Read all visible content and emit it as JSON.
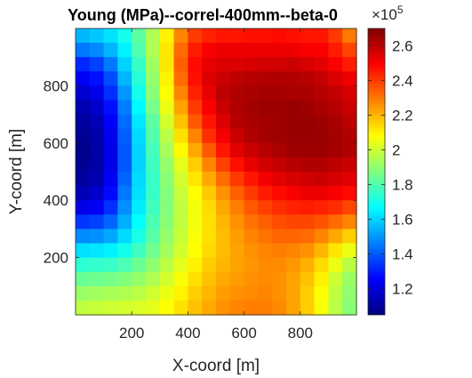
{
  "chart_data": {
    "type": "heatmap",
    "title": "Young (MPa)--correl-400mm--beta-0",
    "xlabel": "X-coord [m]",
    "ylabel": "Y-coord [m]",
    "xlim": [
      0,
      1000
    ],
    "ylim": [
      0,
      1000
    ],
    "xticks": [
      200,
      400,
      600,
      800
    ],
    "yticks": [
      200,
      400,
      600,
      800
    ],
    "colormap": "jet",
    "colorbar": {
      "clim": [
        1.05,
        2.7
      ],
      "ticks": [
        1.2,
        1.4,
        1.6,
        1.8,
        2,
        2.2,
        2.4,
        2.6
      ],
      "multiplier": "×10^5",
      "multiplier_base": "×10",
      "multiplier_exp": "5"
    },
    "grid": {
      "cols": 20,
      "rows": 20,
      "cell_size_m": 50,
      "row_order": "top-to-bottom",
      "values_x1e5": [
        [
          1.55,
          1.58,
          1.62,
          1.7,
          1.82,
          1.95,
          2.1,
          2.28,
          2.4,
          2.44,
          2.46,
          2.46,
          2.47,
          2.47,
          2.48,
          2.47,
          2.46,
          2.46,
          2.4,
          2.3
        ],
        [
          1.45,
          1.48,
          1.55,
          1.65,
          1.8,
          1.95,
          2.12,
          2.32,
          2.45,
          2.5,
          2.52,
          2.52,
          2.52,
          2.52,
          2.52,
          2.52,
          2.5,
          2.5,
          2.45,
          2.38
        ],
        [
          1.32,
          1.36,
          1.45,
          1.6,
          1.76,
          1.93,
          2.12,
          2.34,
          2.48,
          2.53,
          2.55,
          2.55,
          2.56,
          2.57,
          2.57,
          2.58,
          2.56,
          2.54,
          2.5,
          2.45
        ],
        [
          1.24,
          1.28,
          1.38,
          1.55,
          1.73,
          1.91,
          2.1,
          2.32,
          2.47,
          2.55,
          2.58,
          2.6,
          2.61,
          2.62,
          2.62,
          2.62,
          2.61,
          2.59,
          2.55,
          2.52
        ],
        [
          1.18,
          1.22,
          1.33,
          1.5,
          1.7,
          1.89,
          2.08,
          2.28,
          2.44,
          2.53,
          2.6,
          2.62,
          2.63,
          2.64,
          2.64,
          2.63,
          2.63,
          2.61,
          2.59,
          2.56
        ],
        [
          1.13,
          1.17,
          1.28,
          1.46,
          1.66,
          1.86,
          2.05,
          2.23,
          2.4,
          2.5,
          2.58,
          2.62,
          2.64,
          2.65,
          2.65,
          2.66,
          2.65,
          2.63,
          2.61,
          2.58
        ],
        [
          1.1,
          1.14,
          1.25,
          1.43,
          1.63,
          1.82,
          2.01,
          2.18,
          2.35,
          2.46,
          2.55,
          2.61,
          2.63,
          2.64,
          2.65,
          2.66,
          2.66,
          2.65,
          2.63,
          2.6
        ],
        [
          1.08,
          1.12,
          1.23,
          1.41,
          1.61,
          1.8,
          1.97,
          2.13,
          2.28,
          2.42,
          2.51,
          2.58,
          2.62,
          2.64,
          2.65,
          2.66,
          2.66,
          2.66,
          2.64,
          2.62
        ],
        [
          1.07,
          1.11,
          1.22,
          1.4,
          1.6,
          1.78,
          1.94,
          2.09,
          2.22,
          2.35,
          2.46,
          2.54,
          2.58,
          2.61,
          2.63,
          2.65,
          2.65,
          2.65,
          2.64,
          2.62
        ],
        [
          1.08,
          1.11,
          1.22,
          1.4,
          1.6,
          1.77,
          1.91,
          2.04,
          2.16,
          2.28,
          2.39,
          2.47,
          2.53,
          2.57,
          2.59,
          2.61,
          2.62,
          2.62,
          2.6,
          2.58
        ],
        [
          1.1,
          1.13,
          1.24,
          1.42,
          1.61,
          1.76,
          1.89,
          2.01,
          2.12,
          2.22,
          2.32,
          2.4,
          2.46,
          2.51,
          2.54,
          2.56,
          2.57,
          2.58,
          2.56,
          2.54
        ],
        [
          1.14,
          1.17,
          1.27,
          1.45,
          1.62,
          1.76,
          1.88,
          1.99,
          2.08,
          2.17,
          2.26,
          2.34,
          2.4,
          2.45,
          2.48,
          2.5,
          2.52,
          2.52,
          2.5,
          2.48
        ],
        [
          1.22,
          1.24,
          1.33,
          1.49,
          1.64,
          1.77,
          1.88,
          1.98,
          2.06,
          2.14,
          2.22,
          2.29,
          2.35,
          2.39,
          2.42,
          2.44,
          2.45,
          2.44,
          2.42,
          2.38
        ],
        [
          1.34,
          1.36,
          1.42,
          1.54,
          1.67,
          1.79,
          1.89,
          1.98,
          2.06,
          2.13,
          2.2,
          2.26,
          2.31,
          2.34,
          2.37,
          2.38,
          2.38,
          2.36,
          2.32,
          2.28
        ],
        [
          1.48,
          1.49,
          1.53,
          1.61,
          1.71,
          1.81,
          1.91,
          1.99,
          2.07,
          2.13,
          2.19,
          2.24,
          2.28,
          2.31,
          2.33,
          2.33,
          2.32,
          2.28,
          2.22,
          2.16
        ],
        [
          1.62,
          1.63,
          1.65,
          1.7,
          1.77,
          1.85,
          1.93,
          2.01,
          2.08,
          2.14,
          2.19,
          2.23,
          2.26,
          2.28,
          2.29,
          2.28,
          2.26,
          2.2,
          2.12,
          2.05
        ],
        [
          1.74,
          1.75,
          1.76,
          1.79,
          1.84,
          1.9,
          1.97,
          2.04,
          2.1,
          2.16,
          2.2,
          2.23,
          2.25,
          2.27,
          2.27,
          2.25,
          2.21,
          2.14,
          2.05,
          1.97
        ],
        [
          1.84,
          1.85,
          1.86,
          1.88,
          1.91,
          1.95,
          2.01,
          2.07,
          2.13,
          2.18,
          2.22,
          2.24,
          2.26,
          2.27,
          2.26,
          2.23,
          2.18,
          2.1,
          2.0,
          1.92
        ],
        [
          1.92,
          1.93,
          1.94,
          1.95,
          1.97,
          2.0,
          2.05,
          2.1,
          2.16,
          2.2,
          2.24,
          2.26,
          2.27,
          2.28,
          2.26,
          2.23,
          2.16,
          2.08,
          1.98,
          1.9
        ],
        [
          1.98,
          1.99,
          2.0,
          2.01,
          2.02,
          2.04,
          2.08,
          2.13,
          2.18,
          2.22,
          2.26,
          2.28,
          2.29,
          2.29,
          2.27,
          2.23,
          2.16,
          2.07,
          1.97,
          1.89
        ]
      ]
    }
  }
}
